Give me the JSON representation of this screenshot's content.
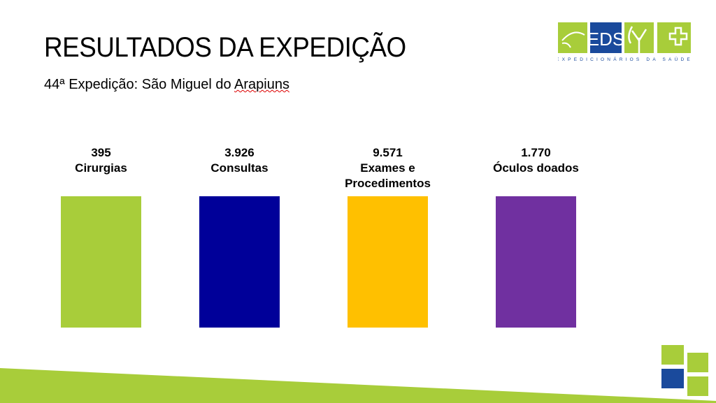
{
  "slide": {
    "title": "RESULTADOS DA EXPEDIÇÃO",
    "subtitle_prefix": "44ª Expedição: São Miguel do ",
    "subtitle_underlined": "Arapiuns"
  },
  "logo": {
    "text": "EDS",
    "tagline": "EXPEDICIONÁRIOS DA SAÚDE"
  },
  "stats": [
    {
      "value": "395",
      "label": "Cirurgias",
      "color": "#a8cd3a"
    },
    {
      "value": "3.926",
      "label": "Consultas",
      "color": "#000099"
    },
    {
      "value": "9.571",
      "label": "Exames e Procedimentos",
      "color": "#ffc000"
    },
    {
      "value": "1.770",
      "label": "Óculos doados",
      "color": "#7030a0"
    }
  ],
  "colors": {
    "accent_green": "#a8cd3a",
    "accent_blue": "#1a4a9c"
  }
}
